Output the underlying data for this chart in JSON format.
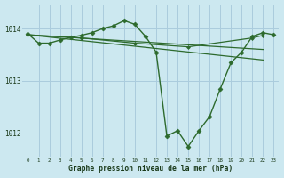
{
  "background_color": "#cce8f0",
  "grid_color": "#aaccdd",
  "line_color": "#2d6a2d",
  "marker_color": "#2d6a2d",
  "title": "Graphe pression niveau de la mer (hPa)",
  "xlim": [
    -0.5,
    23.5
  ],
  "ylim": [
    1011.55,
    1014.45
  ],
  "yticks": [
    1012,
    1013,
    1014
  ],
  "xticks": [
    0,
    1,
    2,
    3,
    4,
    5,
    6,
    7,
    8,
    9,
    10,
    11,
    12,
    13,
    14,
    15,
    16,
    17,
    18,
    19,
    20,
    21,
    22,
    23
  ],
  "series": [
    {
      "x": [
        0,
        1,
        2,
        3,
        4,
        5,
        6,
        7,
        8,
        9,
        10,
        11,
        12,
        13,
        14,
        15,
        16,
        17,
        18,
        19,
        20,
        21,
        22,
        23
      ],
      "y": [
        1013.9,
        1013.72,
        1013.72,
        1013.78,
        1013.83,
        1013.87,
        1013.92,
        1014.0,
        1014.05,
        1014.15,
        1014.08,
        1013.85,
        1013.55,
        1011.95,
        1012.05,
        1011.75,
        1012.05,
        1012.32,
        1012.85,
        1013.35,
        1013.55,
        1013.85,
        1013.92,
        1013.88
      ],
      "marker": true,
      "markersize": 2.5,
      "linewidth": 1.0
    },
    {
      "x": [
        0,
        5,
        10,
        15,
        21,
        22
      ],
      "y": [
        1013.88,
        1013.82,
        1013.72,
        1013.65,
        1013.82,
        1013.87
      ],
      "marker": true,
      "markersize": 2.0,
      "linewidth": 0.9
    },
    {
      "x": [
        0,
        22
      ],
      "y": [
        1013.88,
        1013.6
      ],
      "marker": false,
      "linewidth": 0.9
    },
    {
      "x": [
        0,
        22
      ],
      "y": [
        1013.88,
        1013.4
      ],
      "marker": false,
      "linewidth": 0.9
    }
  ]
}
